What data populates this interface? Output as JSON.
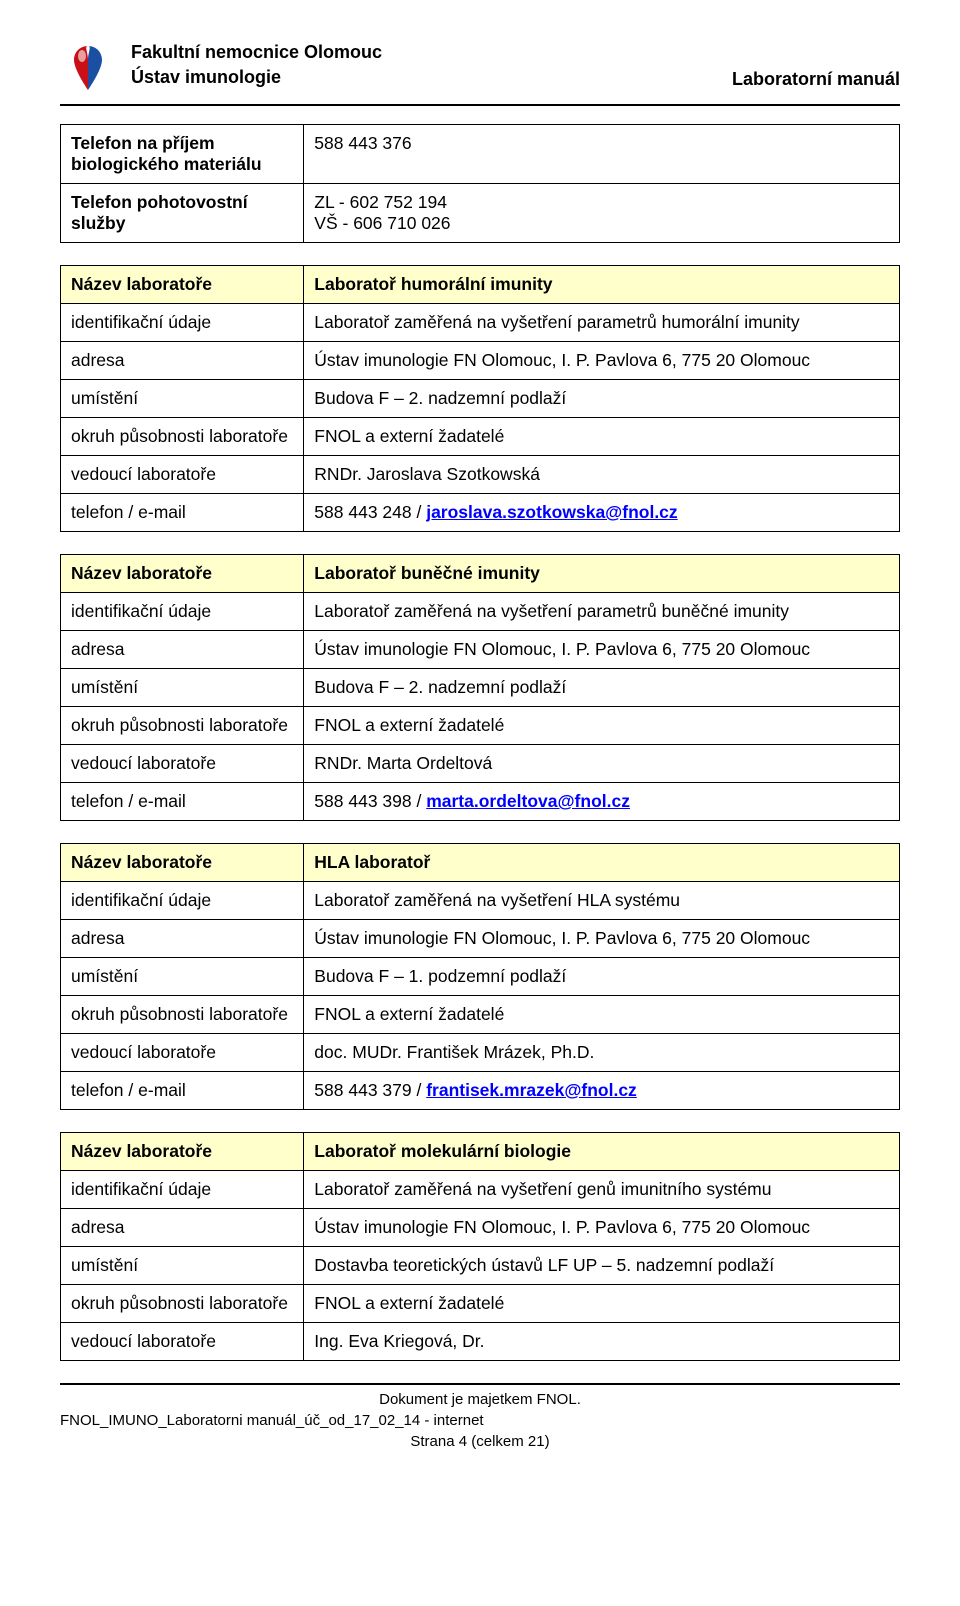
{
  "header": {
    "org": "Fakultní nemocnice Olomouc",
    "dept": "Ústav imunologie",
    "doc_title": "Laboratorní manuál"
  },
  "contact_table": {
    "rows": [
      {
        "label": "Telefon na příjem biologického materiálu",
        "value": "588 443 376"
      },
      {
        "label": "Telefon pohotovostní služby",
        "value": "ZL - 602 752 194\nVŠ - 606 710 026"
      }
    ]
  },
  "labs": [
    {
      "rows": [
        {
          "label": "Název laboratoře",
          "value": "Laboratoř humorální imunity",
          "yellow": true
        },
        {
          "label": "identifikační údaje",
          "value": "Laboratoř zaměřená na vyšetření parametrů humorální imunity"
        },
        {
          "label": "adresa",
          "value": "Ústav imunologie FN Olomouc, I. P. Pavlova 6, 775 20 Olomouc"
        },
        {
          "label": "umístění",
          "value": "Budova F – 2. nadzemní podlaží"
        },
        {
          "label": "okruh působnosti laboratoře",
          "value": "FNOL a externí žadatelé"
        },
        {
          "label": "vedoucí laboratoře",
          "value": "RNDr. Jaroslava Szotkowská"
        },
        {
          "label": "telefon / e-mail",
          "phone": "588 443 248 / ",
          "email": "jaroslava.szotkowska@fnol.cz"
        }
      ]
    },
    {
      "rows": [
        {
          "label": "Název laboratoře",
          "value": "Laboratoř buněčné imunity",
          "yellow": true
        },
        {
          "label": "identifikační údaje",
          "value": "Laboratoř zaměřená na vyšetření parametrů buněčné imunity"
        },
        {
          "label": "adresa",
          "value": "Ústav imunologie FN Olomouc, I. P. Pavlova 6, 775 20 Olomouc"
        },
        {
          "label": "umístění",
          "value": "Budova F – 2. nadzemní podlaží"
        },
        {
          "label": "okruh působnosti laboratoře",
          "value": "FNOL a externí žadatelé"
        },
        {
          "label": "vedoucí laboratoře",
          "value": "RNDr. Marta Ordeltová"
        },
        {
          "label": "telefon / e-mail",
          "phone": "588 443 398 / ",
          "email": "marta.ordeltova@fnol.cz"
        }
      ]
    },
    {
      "rows": [
        {
          "label": "Název laboratoře",
          "value": "HLA laboratoř",
          "yellow": true
        },
        {
          "label": "identifikační údaje",
          "value": "Laboratoř zaměřená na vyšetření HLA systému"
        },
        {
          "label": "adresa",
          "value": "Ústav imunologie FN Olomouc, I. P. Pavlova 6, 775 20 Olomouc"
        },
        {
          "label": "umístění",
          "value": "Budova F – 1. podzemní podlaží"
        },
        {
          "label": "okruh působnosti laboratoře",
          "value": "FNOL a externí žadatelé"
        },
        {
          "label": "vedoucí laboratoře",
          "value": "doc. MUDr. František Mrázek, Ph.D."
        },
        {
          "label": "telefon / e-mail",
          "phone": "588 443 379 / ",
          "email": "frantisek.mrazek@fnol.cz"
        }
      ]
    },
    {
      "rows": [
        {
          "label": "Název laboratoře",
          "value": "Laboratoř molekulární biologie",
          "yellow": true
        },
        {
          "label": "identifikační údaje",
          "value": "Laboratoř zaměřená na vyšetření genů imunitního systému"
        },
        {
          "label": "adresa",
          "value": "Ústav imunologie FN Olomouc, I. P. Pavlova 6, 775 20 Olomouc"
        },
        {
          "label": "umístění",
          "value": "Dostavba teoretických ústavů LF UP – 5. nadzemní podlaží"
        },
        {
          "label": "okruh působnosti laboratoře",
          "value": "FNOL a externí žadatelé"
        },
        {
          "label": "vedoucí laboratoře",
          "value": "Ing. Eva Kriegová, Dr."
        }
      ]
    }
  ],
  "footer": {
    "line1": "Dokument je majetkem FNOL.",
    "line2": "FNOL_IMUNO_Laboratorni manuál_úč_od_17_02_14 - internet",
    "line3": "Strana 4 (celkem 21)"
  },
  "colors": {
    "yellow_bg": "#ffffcc",
    "link": "#0000ff",
    "text": "#000000",
    "background": "#ffffff",
    "border": "#000000"
  }
}
